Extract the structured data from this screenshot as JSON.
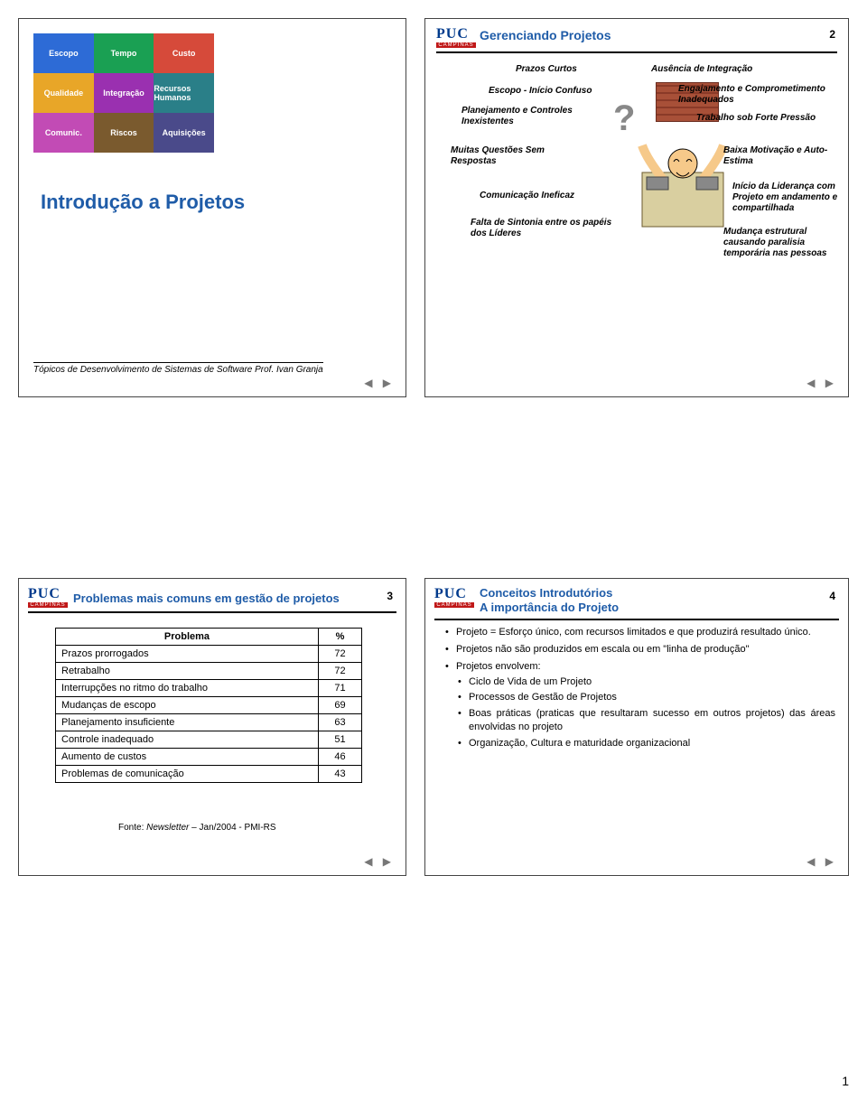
{
  "page_number_footer": "1",
  "nav_glyphs": "◀ ▶",
  "logo": {
    "top": "PUC",
    "bottom": "CAMPINAS"
  },
  "slide1": {
    "title": "Introdução a Projetos",
    "footer": "Tópicos de Desenvolvimento de Sistemas  de Software Prof. Ivan Granja",
    "puzzle": {
      "cells": [
        "Escopo",
        "Tempo",
        "Custo",
        "Qualidade",
        "Integração",
        "Recursos Humanos",
        "Comunic.",
        "Riscos",
        "Aquisições"
      ],
      "colors": [
        "#2d6bd6",
        "#1aa053",
        "#d64a3a",
        "#e8a628",
        "#9a30b0",
        "#2a7f88",
        "#c24bb5",
        "#7a5a2e",
        "#4a4a8a"
      ]
    }
  },
  "slide2": {
    "header": "Gerenciando Projetos",
    "page": "2",
    "left_items": [
      "Prazos Curtos",
      "Escopo - Início Confuso",
      "Planejamento e Controles Inexistentes",
      "Muitas Questões Sem Respostas",
      "Comunicação Ineficaz",
      "Falta de Sintonia entre os papéis dos Líderes"
    ],
    "right_items": [
      "Ausência de Integração",
      "Engajamento e Comprometimento  Inadequados",
      "Trabalho sob Forte Pressão",
      "Baixa Motivação e Auto-Estima",
      "Início da Liderança com Projeto em andamento e compartilhada",
      "Mudança estrutural causando paralisia temporária nas pessoas"
    ]
  },
  "slide3": {
    "header": "Problemas mais comuns em gestão de projetos",
    "page": "3",
    "col1": "Problema",
    "col2": "%",
    "rows": [
      [
        "Prazos prorrogados",
        "72"
      ],
      [
        "Retrabalho",
        "72"
      ],
      [
        "Interrupções no ritmo do trabalho",
        "71"
      ],
      [
        "Mudanças de escopo",
        "69"
      ],
      [
        "Planejamento insuficiente",
        "63"
      ],
      [
        "Controle inadequado",
        "51"
      ],
      [
        "Aumento de custos",
        "46"
      ],
      [
        "Problemas de comunicação",
        "43"
      ]
    ],
    "source_prefix": "Fonte: ",
    "source_italic": "Newsletter",
    "source_suffix": " – Jan/2004 -  PMI-RS"
  },
  "slide4": {
    "header_line1": "Conceitos Introdutórios",
    "header_line2": "A importância do Projeto",
    "page": "4",
    "bullets": [
      "Projeto = Esforço único, com recursos limitados e que produzirá resultado único.",
      "Projetos não são produzidos em escala ou em \"linha de produção\"",
      "Projetos envolvem:"
    ],
    "sub_bullets": [
      "Ciclo de Vida de um Projeto",
      "Processos de Gestão de Projetos",
      "Boas práticas (praticas que resultaram sucesso em outros projetos) das áreas envolvidas no projeto",
      "Organização, Cultura e maturidade organizacional"
    ]
  }
}
